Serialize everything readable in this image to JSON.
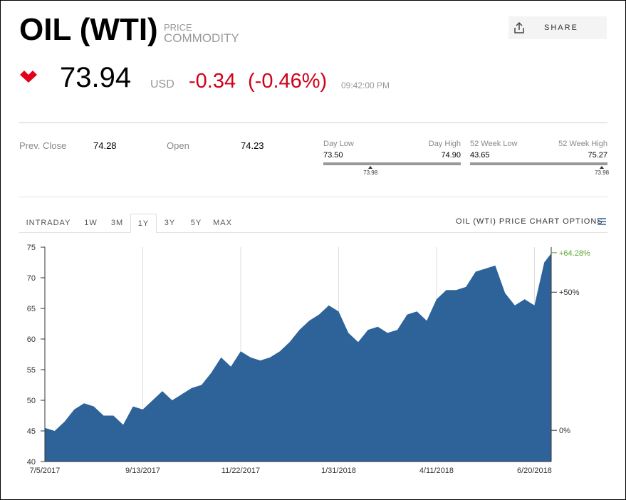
{
  "header": {
    "title": "OIL (WTI)",
    "kind_top": "PRICE",
    "kind_bottom": "COMMODITY",
    "share": "SHARE"
  },
  "quote": {
    "price": 73.94,
    "currency": "USD",
    "change": -0.34,
    "change_pct": "(-0.46%)",
    "time": "09:42:00 PM"
  },
  "stats": [
    {
      "label": "Prev. Close",
      "value": 74.28
    },
    {
      "label": "Open",
      "value": 74.23
    }
  ],
  "ranges": [
    {
      "low_label": "Day Low",
      "high_label": "Day High",
      "low": 73.5,
      "low_text": "73.50",
      "high": 74.9,
      "high_text": "74.90",
      "current": 73.98
    },
    {
      "low_label": "52 Week Low",
      "high_label": "52 Week High",
      "low": 43.65,
      "high": 75.27,
      "current": 73.98
    }
  ],
  "tabs": [
    "INTRADAY",
    "1W",
    "3M",
    "1Y",
    "3Y",
    "5Y",
    "MAX"
  ],
  "active_tab": "1Y",
  "chart_options": "OIL (WTI) PRICE CHART OPTIONS",
  "chart_data": {
    "type": "area",
    "color": "#2e6399",
    "x": [
      "7/5/2017",
      "7/12/2017",
      "7/19/2017",
      "7/26/2017",
      "8/2/2017",
      "8/9/2017",
      "8/16/2017",
      "8/23/2017",
      "8/30/2017",
      "9/6/2017",
      "9/13/2017",
      "9/20/2017",
      "9/27/2017",
      "10/4/2017",
      "10/11/2017",
      "10/18/2017",
      "10/25/2017",
      "11/1/2017",
      "11/8/2017",
      "11/15/2017",
      "11/22/2017",
      "11/29/2017",
      "12/6/2017",
      "12/13/2017",
      "12/20/2017",
      "12/27/2017",
      "1/3/2018",
      "1/10/2018",
      "1/17/2018",
      "1/24/2018",
      "1/31/2018",
      "2/7/2018",
      "2/14/2018",
      "2/21/2018",
      "2/28/2018",
      "3/7/2018",
      "3/14/2018",
      "3/21/2018",
      "3/28/2018",
      "4/4/2018",
      "4/11/2018",
      "4/18/2018",
      "4/25/2018",
      "5/2/2018",
      "5/9/2018",
      "5/16/2018",
      "5/23/2018",
      "5/30/2018",
      "6/6/2018",
      "6/13/2018",
      "6/20/2018",
      "6/27/2018",
      "7/2/2018"
    ],
    "values": [
      45.5,
      45,
      46.5,
      48.5,
      49.5,
      49,
      47.5,
      47.5,
      46,
      49,
      48.5,
      50,
      51.5,
      50,
      51,
      52,
      52.5,
      54.5,
      57,
      55.5,
      58,
      57,
      56.5,
      57,
      58,
      59.5,
      61.5,
      63,
      64,
      65.5,
      64.5,
      61,
      59.5,
      61.5,
      62,
      61,
      61.5,
      64,
      64.5,
      63,
      66.5,
      68,
      68,
      68.5,
      71,
      71.5,
      72,
      67.5,
      65.5,
      66.5,
      65.5,
      72.5,
      73.98
    ],
    "xticks": [
      "7/5/2017",
      "9/13/2017",
      "11/22/2017",
      "1/31/2018",
      "4/11/2018",
      "6/20/2018"
    ],
    "ylim": [
      40,
      75
    ],
    "yticks": [
      40,
      45,
      50,
      55,
      60,
      65,
      70,
      75
    ],
    "y2lim": [
      -11.3,
      66.3
    ],
    "y2ticks": [
      {
        "value": 64.28,
        "label": "+64.28%"
      },
      {
        "value": 50,
        "label": "+50%"
      },
      {
        "value": 0,
        "label": "0%"
      }
    ]
  }
}
